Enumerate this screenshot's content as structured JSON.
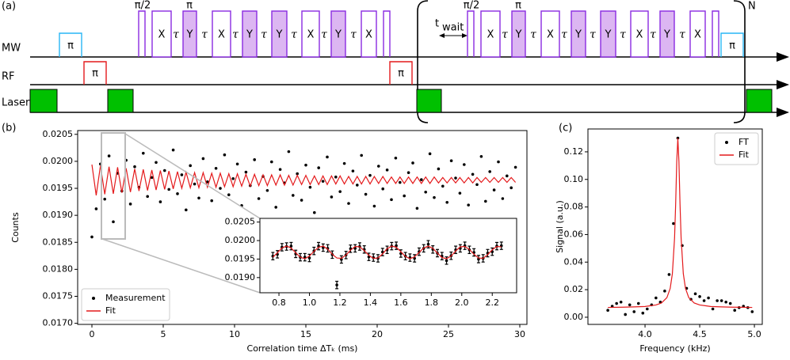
{
  "pulse_sequence": {
    "panel_label": "(a)",
    "rows": [
      "MW",
      "RF",
      "Laser"
    ],
    "sequence_groups": [
      {
        "top": [
          "π/2",
          "π"
        ],
        "blocks": [
          "X",
          "τ",
          "Y",
          "τ",
          "X",
          "τ",
          "Y",
          "τ",
          "Y",
          "τ",
          "X",
          "τ",
          "Y",
          "τ",
          "X"
        ]
      },
      {
        "top": [
          "π/2",
          "π"
        ],
        "blocks": [
          "X",
          "τ",
          "Y",
          "τ",
          "X",
          "τ",
          "Y",
          "τ",
          "Y",
          "τ",
          "X",
          "τ",
          "Y",
          "τ",
          "X"
        ]
      }
    ],
    "mw_pulse_labels": [
      "π",
      "π"
    ],
    "rf_pulse_labels": [
      "π",
      "π"
    ],
    "t_wait": {
      "main": "t",
      "sub": "wait"
    },
    "repeat_label": "N"
  },
  "chart_data": [
    {
      "type": "scatter",
      "panel_label": "(b)",
      "xlabel": "Correlation time ΔTₖ (ms)",
      "ylabel": "Counts",
      "xlim": [
        -1,
        30.5
      ],
      "ylim": [
        0.01698,
        0.02057
      ],
      "xticks": [
        0,
        5,
        10,
        15,
        20,
        25,
        30
      ],
      "yticks": [
        {
          "value": 0.017,
          "label": "0.0170"
        },
        0.0175,
        {
          "value": 0.018,
          "label": "0.0180"
        },
        0.0185,
        {
          "value": 0.019,
          "label": "0.0190"
        },
        0.0195,
        {
          "value": 0.02,
          "label": "0.0200"
        },
        0.0205
      ],
      "legend": "lower left",
      "series": [
        {
          "name": "Measurement",
          "mode": "markers",
          "color": "#000000",
          "x": [
            0,
            0.3,
            0.6,
            0.9,
            1.2,
            1.5,
            1.8,
            2.1,
            2.4,
            2.7,
            3,
            3.3,
            3.6,
            3.9,
            4.2,
            4.5,
            4.8,
            5.1,
            5.4,
            5.7,
            6,
            6.3,
            6.6,
            6.9,
            7.2,
            7.5,
            7.8,
            8.1,
            8.4,
            8.7,
            9,
            9.3,
            9.6,
            9.9,
            10.2,
            10.5,
            10.8,
            11.1,
            11.4,
            11.7,
            12,
            12.3,
            12.6,
            12.9,
            13.2,
            13.5,
            13.8,
            14.1,
            14.4,
            14.7,
            15,
            15.3,
            15.6,
            15.9,
            16.2,
            16.5,
            16.8,
            17.1,
            17.4,
            17.7,
            18,
            18.3,
            18.6,
            18.9,
            19.2,
            19.5,
            19.8,
            20.1,
            20.4,
            20.7,
            21,
            21.3,
            21.6,
            21.9,
            22.2,
            22.5,
            22.8,
            23.1,
            23.4,
            23.7,
            24,
            24.3,
            24.6,
            24.9,
            25.2,
            25.5,
            25.8,
            26.1,
            26.4,
            26.7,
            27,
            27.3,
            27.6,
            27.9,
            28.2,
            28.5,
            28.8,
            29.1,
            29.4,
            29.7
          ],
          "values": [
            0.0186,
            0.01912,
            0.01995,
            0.0193,
            0.0201,
            0.01888,
            0.01978,
            0.01945,
            0.02002,
            0.01921,
            0.0199,
            0.01952,
            0.02015,
            0.01935,
            0.0197,
            0.01998,
            0.01925,
            0.01983,
            0.01948,
            0.02021,
            0.0194,
            0.01975,
            0.0191,
            0.01992,
            0.01958,
            0.01932,
            0.02005,
            0.01962,
            0.01927,
            0.01987,
            0.0195,
            0.02012,
            0.01938,
            0.01968,
            0.01995,
            0.01918,
            0.0198,
            0.01955,
            0.02003,
            0.01931,
            0.01972,
            0.01946,
            0.01999,
            0.01915,
            0.01985,
            0.0196,
            0.02018,
            0.01937,
            0.01977,
            0.01928,
            0.01993,
            0.01952,
            0.01905,
            0.01988,
            0.01963,
            0.02008,
            0.01934,
            0.01971,
            0.01944,
            0.01996,
            0.01922,
            0.01982,
            0.01956,
            0.02011,
            0.01939,
            0.01974,
            0.01917,
            0.01991,
            0.01949,
            0.01984,
            0.01929,
            0.02006,
            0.01961,
            0.01936,
            0.01979,
            0.01997,
            0.01913,
            0.01966,
            0.01943,
            0.02014,
            0.01933,
            0.01986,
            0.01954,
            0.01924,
            0.02001,
            0.01969,
            0.01941,
            0.01994,
            0.01919,
            0.01976,
            0.01957,
            0.02009,
            0.01926,
            0.01981,
            0.01947,
            0.01999,
            0.01931,
            0.01973,
            0.01951,
            0.01989
          ]
        },
        {
          "name": "Fit",
          "mode": "line",
          "color": "#e41a1c",
          "x": [
            0,
            0.3,
            0.6,
            0.9,
            1.2,
            1.5,
            1.8,
            2.1,
            2.4,
            2.7,
            3,
            3.3,
            3.6,
            3.9,
            4.2,
            4.5,
            4.8,
            5.1,
            5.4,
            5.7,
            6,
            6.3,
            6.6,
            6.9,
            7.2,
            7.5,
            7.8,
            8.1,
            8.4,
            8.7,
            9,
            9.3,
            9.6,
            9.9,
            10.2,
            10.5,
            10.8,
            11.1,
            11.4,
            11.7,
            12,
            12.3,
            12.6,
            12.9,
            13.2,
            13.5,
            13.8,
            14.1,
            14.4,
            14.7,
            15,
            15.3,
            15.6,
            15.9,
            16.2,
            16.5,
            16.8,
            17.1,
            17.4,
            17.7,
            18,
            18.3,
            18.6,
            18.9,
            19.2,
            19.5,
            19.8,
            20.1,
            20.4,
            20.7,
            21,
            21.3,
            21.6,
            21.9,
            22.2,
            22.5,
            22.8,
            23.1,
            23.4,
            23.7,
            24,
            24.3,
            24.6,
            24.9,
            25.2,
            25.5,
            25.8,
            26.1,
            26.4,
            26.7,
            27,
            27.3,
            27.6,
            27.9,
            28.2,
            28.5,
            28.8,
            29.1,
            29.4,
            29.7
          ],
          "values": [
            0.01994,
            0.01937,
            0.01992,
            0.01939,
            0.0199,
            0.0194,
            0.01989,
            0.01942,
            0.01987,
            0.01943,
            0.01986,
            0.01945,
            0.01985,
            0.01946,
            0.01984,
            0.01947,
            0.01983,
            0.01948,
            0.01982,
            0.01949,
            0.01981,
            0.0195,
            0.0198,
            0.01951,
            0.01979,
            0.01951,
            0.01979,
            0.01952,
            0.01978,
            0.01952,
            0.01978,
            0.01953,
            0.01977,
            0.01953,
            0.01977,
            0.01954,
            0.01976,
            0.01954,
            0.01976,
            0.01955,
            0.01975,
            0.01955,
            0.01975,
            0.01956,
            0.01975,
            0.01956,
            0.01974,
            0.01956,
            0.01974,
            0.01957,
            0.01974,
            0.01957,
            0.01973,
            0.01957,
            0.01973,
            0.01957,
            0.01973,
            0.01958,
            0.01973,
            0.01958,
            0.01972,
            0.01958,
            0.01972,
            0.01958,
            0.01972,
            0.01958,
            0.01972,
            0.01959,
            0.01972,
            0.01959,
            0.01971,
            0.01959,
            0.01971,
            0.01959,
            0.01971,
            0.01959,
            0.01971,
            0.01959,
            0.01971,
            0.01959,
            0.01971,
            0.0196,
            0.0197,
            0.0196,
            0.0197,
            0.0196,
            0.0197,
            0.0196,
            0.0197,
            0.0196,
            0.0197,
            0.01961,
            0.0197,
            0.01961,
            0.0197,
            0.01961,
            0.0197,
            0.01961,
            0.0197,
            0.01961
          ]
        }
      ]
    },
    {
      "type": "scatter",
      "xlim": [
        0.675,
        2.36
      ],
      "ylim": [
        0.01859,
        0.0206
      ],
      "xticks": [
        0.8,
        {
          "value": 1,
          "label": "1.0"
        },
        1.2,
        1.4,
        1.6,
        1.8,
        {
          "value": 2,
          "label": "2.0"
        },
        2.2
      ],
      "yticks": [
        {
          "value": 0.019,
          "label": "0.0190"
        },
        0.0195,
        {
          "value": 0.02,
          "label": "0.0200"
        },
        0.0205
      ],
      "series": [
        {
          "mode": "markers",
          "color": "#000000",
          "error": 0.0001,
          "x": [
            0.76,
            0.79,
            0.82,
            0.85,
            0.88,
            0.91,
            0.94,
            0.97,
            1.0,
            1.03,
            1.06,
            1.09,
            1.12,
            1.15,
            1.18,
            1.21,
            1.24,
            1.27,
            1.3,
            1.33,
            1.36,
            1.39,
            1.42,
            1.45,
            1.48,
            1.51,
            1.54,
            1.57,
            1.6,
            1.63,
            1.66,
            1.69,
            1.72,
            1.75,
            1.78,
            1.81,
            1.84,
            1.87,
            1.9,
            1.93,
            1.96,
            1.99,
            2.02,
            2.05,
            2.08,
            2.11,
            2.14,
            2.17,
            2.2,
            2.23,
            2.26
          ],
          "values": [
            0.01958,
            0.01963,
            0.01982,
            0.01984,
            0.01985,
            0.01964,
            0.01955,
            0.01955,
            0.01953,
            0.01972,
            0.01985,
            0.01981,
            0.01979,
            0.01962,
            0.0188,
            0.01949,
            0.01961,
            0.01978,
            0.01979,
            0.01984,
            0.01976,
            0.01956,
            0.01954,
            0.01952,
            0.01969,
            0.01975,
            0.01985,
            0.01986,
            0.01965,
            0.01958,
            0.01954,
            0.01952,
            0.0197,
            0.01979,
            0.0199,
            0.01976,
            0.01966,
            0.01958,
            0.01946,
            0.01959,
            0.01975,
            0.01979,
            0.01986,
            0.01975,
            0.01968,
            0.0195,
            0.01952,
            0.01966,
            0.0197,
            0.01985,
            0.01986
          ]
        },
        {
          "mode": "line",
          "color": "#e41a1c",
          "x": [
            0.76,
            0.79,
            0.82,
            0.85,
            0.88,
            0.91,
            0.94,
            0.97,
            1.0,
            1.03,
            1.06,
            1.09,
            1.12,
            1.15,
            1.18,
            1.21,
            1.24,
            1.27,
            1.3,
            1.33,
            1.36,
            1.39,
            1.42,
            1.45,
            1.48,
            1.51,
            1.54,
            1.57,
            1.6,
            1.63,
            1.66,
            1.69,
            1.72,
            1.75,
            1.78,
            1.81,
            1.84,
            1.87,
            1.9,
            1.93,
            1.96,
            1.99,
            2.02,
            2.05,
            2.08,
            2.11,
            2.14,
            2.17,
            2.2,
            2.23,
            2.26
          ],
          "values": [
            0.01955,
            0.01967,
            0.0198,
            0.01985,
            0.0198,
            0.01967,
            0.01955,
            0.01951,
            0.01958,
            0.01971,
            0.01982,
            0.01985,
            0.01977,
            0.01963,
            0.01953,
            0.01952,
            0.01961,
            0.01974,
            0.01984,
            0.01983,
            0.01973,
            0.0196,
            0.01952,
            0.01953,
            0.01964,
            0.01978,
            0.01985,
            0.01982,
            0.0197,
            0.01957,
            0.01951,
            0.01956,
            0.01968,
            0.0198,
            0.01985,
            0.01979,
            0.01966,
            0.01954,
            0.01951,
            0.01958,
            0.01972,
            0.01983,
            0.01984,
            0.01976,
            0.01963,
            0.01953,
            0.01952,
            0.01962,
            0.01975,
            0.01984,
            0.01983
          ]
        }
      ]
    },
    {
      "type": "scatter",
      "panel_label": "(c)",
      "xlabel": "Frequency (kHz)",
      "ylabel": "Signal (a.u.)",
      "xlim": [
        3.478,
        5.072
      ],
      "ylim": [
        -0.0052,
        0.1366
      ],
      "xticks": [
        {
          "value": 4,
          "label": "4.0"
        },
        4.5,
        {
          "value": 5,
          "label": "5.0"
        }
      ],
      "yticks": [
        {
          "value": 0,
          "label": "0.00"
        },
        0.02,
        0.04,
        0.06,
        0.08,
        {
          "value": 0.1,
          "label": "0.10"
        },
        0.12
      ],
      "legend": "upper right",
      "series": [
        {
          "name": "FT",
          "mode": "markers",
          "color": "#000000",
          "x": [
            3.66,
            3.7,
            3.74,
            3.78,
            3.82,
            3.86,
            3.9,
            3.94,
            3.98,
            4.02,
            4.06,
            4.1,
            4.14,
            4.18,
            4.22,
            4.26,
            4.3,
            4.34,
            4.38,
            4.42,
            4.46,
            4.5,
            4.54,
            4.58,
            4.62,
            4.66,
            4.7,
            4.74,
            4.78,
            4.82,
            4.86,
            4.9,
            4.94,
            4.98
          ],
          "values": [
            0.005,
            0.008,
            0.01,
            0.011,
            0.002,
            0.009,
            0.004,
            0.01,
            0.003,
            0.006,
            0.009,
            0.014,
            0.011,
            0.019,
            0.031,
            0.068,
            0.13,
            0.052,
            0.021,
            0.013,
            0.017,
            0.015,
            0.012,
            0.014,
            0.006,
            0.012,
            0.012,
            0.011,
            0.01,
            0.005,
            0.007,
            0.008,
            0.007,
            0.004
          ]
        },
        {
          "name": "Fit",
          "mode": "line",
          "color": "#e41a1c",
          "x": [
            3.66,
            3.8,
            3.9,
            4.0,
            4.1,
            4.15,
            4.2,
            4.23,
            4.25,
            4.27,
            4.28,
            4.29,
            4.3,
            4.31,
            4.32,
            4.33,
            4.35,
            4.37,
            4.4,
            4.45,
            4.5,
            4.6,
            4.7,
            4.8,
            4.9,
            4.98
          ],
          "values": [
            0.0071,
            0.0073,
            0.0075,
            0.0078,
            0.0089,
            0.0103,
            0.0142,
            0.0209,
            0.0316,
            0.0574,
            0.082,
            0.113,
            0.13,
            0.113,
            0.082,
            0.0574,
            0.0316,
            0.0209,
            0.0142,
            0.0103,
            0.0089,
            0.0078,
            0.0075,
            0.0073,
            0.0072,
            0.0071
          ]
        }
      ]
    }
  ]
}
